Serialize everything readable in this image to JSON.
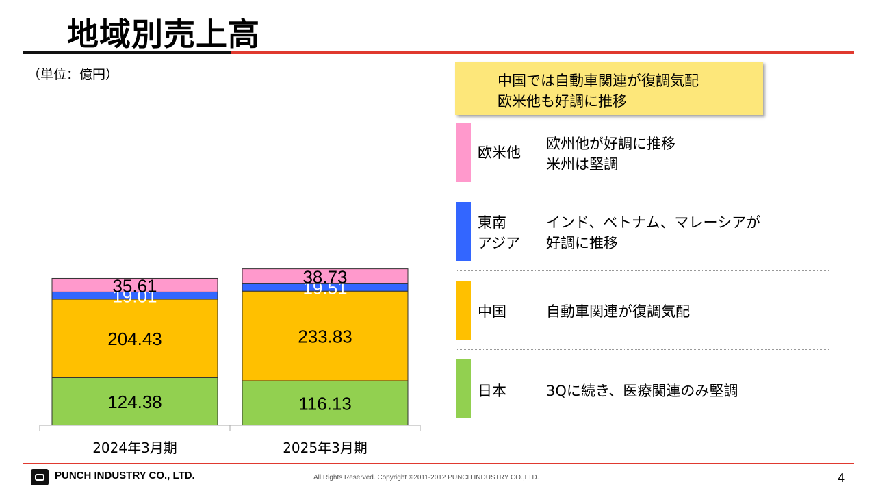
{
  "title": "地域別売上高",
  "unit_label": "（単位：億円）",
  "colors": {
    "japan": "#92d050",
    "china": "#ffc000",
    "sea": "#3366ff",
    "west": "#ff99cc",
    "accent": "#e0392f",
    "callout_bg": "#fde77a"
  },
  "chart_data": {
    "type": "bar",
    "stacked": true,
    "categories": [
      "2024年3月期",
      "2025年3月期"
    ],
    "series": [
      {
        "name": "日本",
        "values": [
          124.38,
          116.13
        ],
        "labels": [
          "124.38",
          "116.13"
        ],
        "color": "#92d050"
      },
      {
        "name": "中国",
        "values": [
          204.43,
          233.83
        ],
        "labels": [
          "204.43",
          "233.83"
        ],
        "color": "#ffc000"
      },
      {
        "name": "東南アジア",
        "values": [
          19.01,
          19.51
        ],
        "labels": [
          "19.01",
          "19.51"
        ],
        "color": "#3366ff"
      },
      {
        "name": "欧米他",
        "values": [
          35.61,
          38.73
        ],
        "labels": [
          "35.61",
          "38.73"
        ],
        "color": "#ff99cc"
      }
    ],
    "ylim": [
      0,
      430
    ],
    "grid": false,
    "legend": "right panel"
  },
  "callout": {
    "line1": "中国では自動車関連が復調気配",
    "line2": "欧米他も好調に推移"
  },
  "regions": [
    {
      "name_line1": "欧米他",
      "name_line2": "",
      "desc_line1": "欧州他が好調に推移",
      "desc_line2": "米州は堅調",
      "color": "#ff99cc"
    },
    {
      "name_line1": "東南",
      "name_line2": "アジア",
      "desc_line1": "インド、ベトナム、マレーシアが",
      "desc_line2": "好調に推移",
      "color": "#3366ff"
    },
    {
      "name_line1": "中国",
      "name_line2": "",
      "desc_line1": "自動車関連が復調気配",
      "desc_line2": "",
      "color": "#ffc000"
    },
    {
      "name_line1": "日本",
      "name_line2": "",
      "desc_line1": "3Qに続き、医療関連のみ堅調",
      "desc_line2": "",
      "color": "#92d050"
    }
  ],
  "footer": {
    "company": "PUNCH INDUSTRY CO., LTD.",
    "copyright": "All Rights Reserved. Copyright ©2011-2012  PUNCH  INDUSTRY  CO.,LTD.",
    "page_number": "4"
  }
}
